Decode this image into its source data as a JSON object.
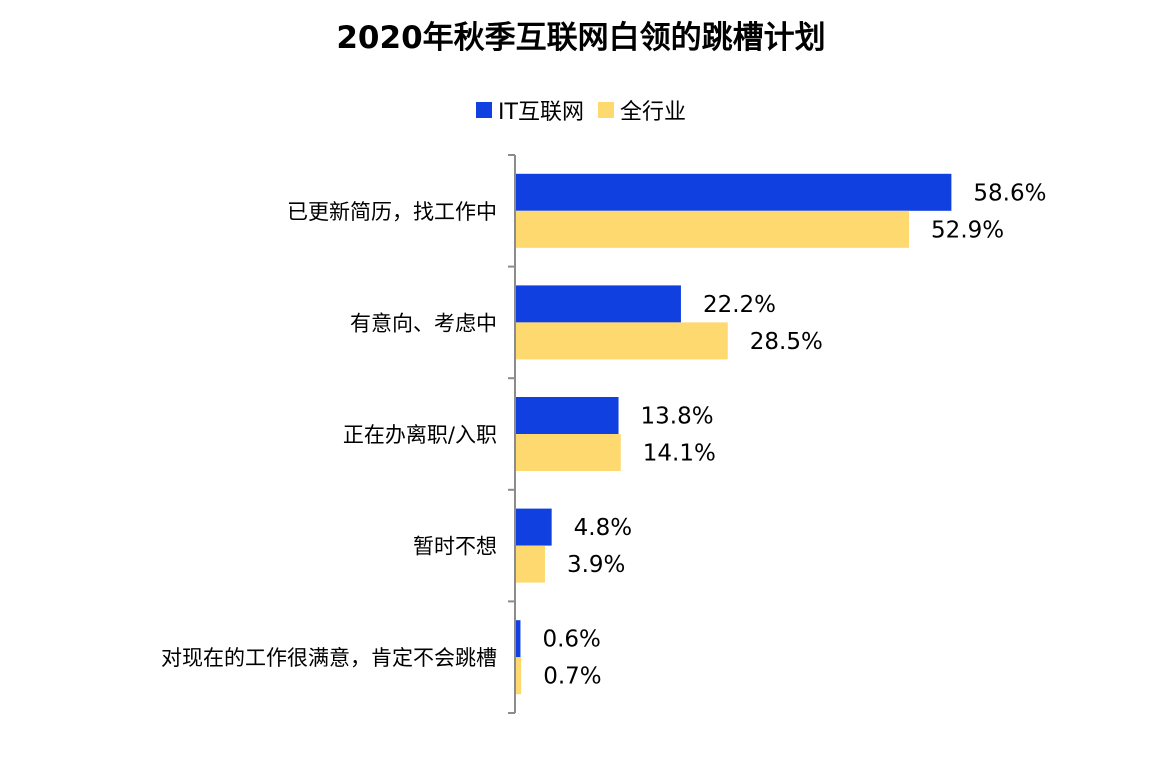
{
  "chart_data": {
    "type": "bar",
    "orientation": "horizontal",
    "title": "2020年秋季互联网白领的跳槽计划",
    "categories": [
      "已更新简历，找工作中",
      "有意向、考虑中",
      "正在办离职/入职",
      "暂时不想",
      "对现在的工作很满意，肯定不会跳槽"
    ],
    "series": [
      {
        "name": "IT互联网",
        "color": "#1140E0",
        "values": [
          58.6,
          22.2,
          13.8,
          4.8,
          0.6
        ],
        "labels": [
          "58.6%",
          "22.2%",
          "13.8%",
          "4.8%",
          "0.6%"
        ]
      },
      {
        "name": "全行业",
        "color": "#FDD96F",
        "values": [
          52.9,
          28.5,
          14.1,
          3.9,
          0.7
        ],
        "labels": [
          "52.9%",
          "28.5%",
          "14.1%",
          "3.9%",
          "0.7%"
        ]
      }
    ],
    "xlim": [
      0,
      65
    ],
    "legend_position": "top-center",
    "grid": false,
    "xlabel": "",
    "ylabel": ""
  }
}
